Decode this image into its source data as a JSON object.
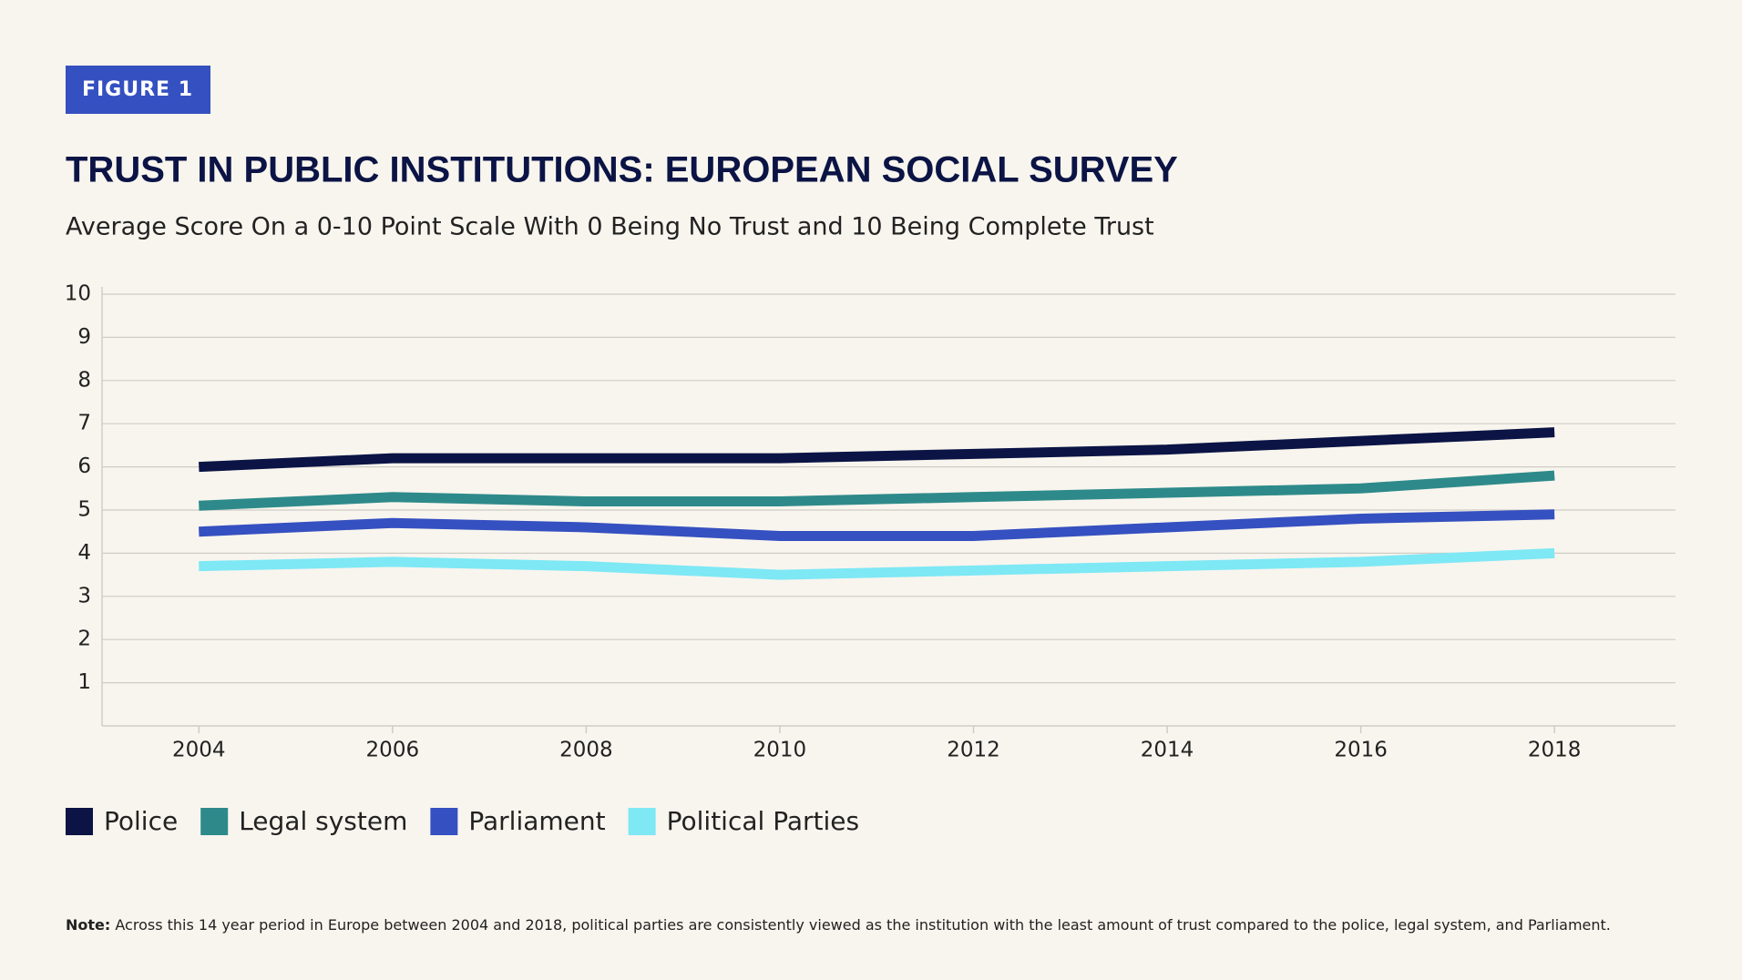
{
  "figure_label": "FIGURE 1",
  "chart_data": {
    "type": "line",
    "title": "TRUST IN PUBLIC INSTITUTIONS: EUROPEAN SOCIAL SURVEY",
    "subtitle": "Average Score On a 0-10 Point Scale With 0 Being No Trust and 10 Being Complete Trust",
    "x": [
      2004,
      2006,
      2008,
      2010,
      2012,
      2014,
      2016,
      2018
    ],
    "xlim": [
      2003,
      2019.25
    ],
    "xticks": [
      2004,
      2006,
      2008,
      2010,
      2012,
      2014,
      2016,
      2018
    ],
    "ylim": [
      0,
      10
    ],
    "yticks": [
      1,
      2,
      3,
      4,
      5,
      6,
      7,
      8,
      9,
      10
    ],
    "grid": true,
    "legend": "bottom-left",
    "series": [
      {
        "name": "Police",
        "color": "#0b1445",
        "values": [
          6.0,
          6.2,
          6.2,
          6.2,
          6.3,
          6.4,
          6.6,
          6.8
        ]
      },
      {
        "name": "Legal system",
        "color": "#2e8a8a",
        "values": [
          5.1,
          5.3,
          5.2,
          5.2,
          5.3,
          5.4,
          5.5,
          5.8
        ]
      },
      {
        "name": "Parliament",
        "color": "#3550c0",
        "values": [
          4.5,
          4.7,
          4.6,
          4.4,
          4.4,
          4.6,
          4.8,
          4.9
        ]
      },
      {
        "name": "Political Parties",
        "color": "#7ee8f5",
        "values": [
          3.7,
          3.8,
          3.7,
          3.5,
          3.6,
          3.7,
          3.8,
          4.0
        ]
      }
    ]
  },
  "note_label": "Note:",
  "note": "Across this 14 year period in Europe between 2004 and 2018, political parties are consistently viewed as the institution with the least amount of trust compared to the police, legal system, and Parliament."
}
